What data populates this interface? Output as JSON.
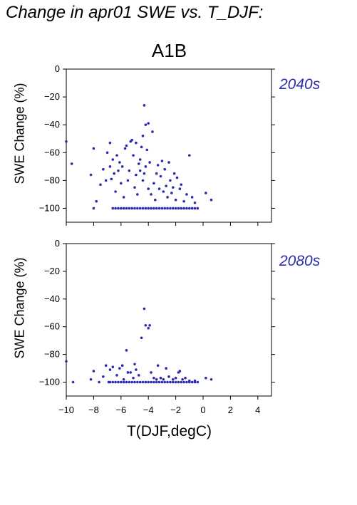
{
  "page_title": "Change in apr01 SWE vs. T_DJF:",
  "scenario": "A1B",
  "colors": {
    "points": "#2b2bb0",
    "axes": "#000000"
  },
  "chart_data": [
    {
      "type": "scatter",
      "period_label": "2040s",
      "ylabel": "SWE Change (%)",
      "xlabel": "",
      "xlim": [
        -10,
        5
      ],
      "ylim": [
        -110,
        0
      ],
      "x_ticks": [
        -10,
        -8,
        -6,
        -4,
        -2,
        0,
        2,
        4
      ],
      "y_ticks": [
        0,
        -20,
        -40,
        -60,
        -80,
        -100
      ],
      "grid": false,
      "legend": "none",
      "points": [
        [
          -10,
          -52
        ],
        [
          -9.6,
          -68
        ],
        [
          -8.2,
          -76
        ],
        [
          -8,
          -57
        ],
        [
          -7.8,
          -95
        ],
        [
          -7.5,
          -83
        ],
        [
          -7.3,
          -72
        ],
        [
          -7.1,
          -80
        ],
        [
          -7,
          -60
        ],
        [
          -6.8,
          -53
        ],
        [
          -6.8,
          -70
        ],
        [
          -6.7,
          -79
        ],
        [
          -6.6,
          -65
        ],
        [
          -6.5,
          -75
        ],
        [
          -6.4,
          -88
        ],
        [
          -6.3,
          -62
        ],
        [
          -6.2,
          -73
        ],
        [
          -6.1,
          -67
        ],
        [
          -6.0,
          -82
        ],
        [
          -5.9,
          -70
        ],
        [
          -5.8,
          -92
        ],
        [
          -5.7,
          -57
        ],
        [
          -5.6,
          -55
        ],
        [
          -5.5,
          -80
        ],
        [
          -5.4,
          -73
        ],
        [
          -5.3,
          -52
        ],
        [
          -5.2,
          -51
        ],
        [
          -5.1,
          -62
        ],
        [
          -5.0,
          -85
        ],
        [
          -4.9,
          -76
        ],
        [
          -4.9,
          -53
        ],
        [
          -4.8,
          -90
        ],
        [
          -4.7,
          -68
        ],
        [
          -4.6,
          -73
        ],
        [
          -4.6,
          -65
        ],
        [
          -4.5,
          -56
        ],
        [
          -4.4,
          -48
        ],
        [
          -4.4,
          -80
        ],
        [
          -4.3,
          -26
        ],
        [
          -4.3,
          -75
        ],
        [
          -4.2,
          -40
        ],
        [
          -4.2,
          -70
        ],
        [
          -4.1,
          -58
        ],
        [
          -4.0,
          -86
        ],
        [
          -4.0,
          -39
        ],
        [
          -3.9,
          -67
        ],
        [
          -3.8,
          -90
        ],
        [
          -3.7,
          -45
        ],
        [
          -3.6,
          -82
        ],
        [
          -3.5,
          -94
        ],
        [
          -3.4,
          -75
        ],
        [
          -3.3,
          -69
        ],
        [
          -3.2,
          -86
        ],
        [
          -3.1,
          -77
        ],
        [
          -3.0,
          -66
        ],
        [
          -2.9,
          -88
        ],
        [
          -2.8,
          -72
        ],
        [
          -2.7,
          -84
        ],
        [
          -2.6,
          -92
        ],
        [
          -2.5,
          -67
        ],
        [
          -2.4,
          -80
        ],
        [
          -2.3,
          -89
        ],
        [
          -2.2,
          -85
        ],
        [
          -2.1,
          -75
        ],
        [
          -2.0,
          -94
        ],
        [
          -1.9,
          -78
        ],
        [
          -1.7,
          -86
        ],
        [
          -1.6,
          -83
        ],
        [
          -1.4,
          -95
        ],
        [
          -1.2,
          -90
        ],
        [
          -1.0,
          -62
        ],
        [
          -0.8,
          -92
        ],
        [
          -0.6,
          -96
        ],
        [
          0.2,
          -89
        ],
        [
          0.6,
          -94
        ],
        [
          -8,
          -100
        ],
        [
          -6.6,
          -100
        ],
        [
          -6.4,
          -100
        ],
        [
          -6.2,
          -100
        ],
        [
          -6.0,
          -100
        ],
        [
          -5.8,
          -100
        ],
        [
          -5.6,
          -100
        ],
        [
          -5.4,
          -100
        ],
        [
          -5.2,
          -100
        ],
        [
          -5.0,
          -100
        ],
        [
          -4.8,
          -100
        ],
        [
          -4.6,
          -100
        ],
        [
          -4.4,
          -100
        ],
        [
          -4.2,
          -100
        ],
        [
          -4.0,
          -100
        ],
        [
          -3.8,
          -100
        ],
        [
          -3.6,
          -100
        ],
        [
          -3.4,
          -100
        ],
        [
          -3.2,
          -100
        ],
        [
          -3.0,
          -100
        ],
        [
          -2.8,
          -100
        ],
        [
          -2.6,
          -100
        ],
        [
          -2.4,
          -100
        ],
        [
          -2.2,
          -100
        ],
        [
          -2.0,
          -100
        ],
        [
          -1.8,
          -100
        ],
        [
          -1.6,
          -100
        ],
        [
          -1.4,
          -100
        ],
        [
          -1.2,
          -100
        ],
        [
          -1.0,
          -100
        ],
        [
          -0.8,
          -100
        ],
        [
          -0.6,
          -100
        ],
        [
          -0.4,
          -100
        ]
      ]
    },
    {
      "type": "scatter",
      "period_label": "2080s",
      "ylabel": "SWE Change (%)",
      "xlabel": "T(DJF,degC)",
      "xlim": [
        -10,
        5
      ],
      "ylim": [
        -110,
        0
      ],
      "x_ticks": [
        -10,
        -8,
        -6,
        -4,
        -2,
        0,
        2,
        4
      ],
      "y_ticks": [
        0,
        -20,
        -40,
        -60,
        -80,
        -100
      ],
      "grid": false,
      "legend": "none",
      "points": [
        [
          -10,
          -85
        ],
        [
          -9.5,
          -100
        ],
        [
          -8.2,
          -98
        ],
        [
          -8.0,
          -92
        ],
        [
          -7.6,
          -100
        ],
        [
          -7.3,
          -96
        ],
        [
          -7.1,
          -88
        ],
        [
          -6.9,
          -100
        ],
        [
          -6.8,
          -91
        ],
        [
          -6.6,
          -89
        ],
        [
          -6.3,
          -95
        ],
        [
          -6.1,
          -90
        ],
        [
          -5.9,
          -88
        ],
        [
          -5.8,
          -98
        ],
        [
          -5.6,
          -77
        ],
        [
          -5.5,
          -93
        ],
        [
          -5.3,
          -93
        ],
        [
          -5.1,
          -97
        ],
        [
          -5.0,
          -87
        ],
        [
          -4.9,
          -91
        ],
        [
          -4.7,
          -95
        ],
        [
          -4.5,
          -68
        ],
        [
          -4.3,
          -47
        ],
        [
          -4.2,
          -59
        ],
        [
          -4.0,
          -61
        ],
        [
          -3.9,
          -59
        ],
        [
          -3.8,
          -93
        ],
        [
          -3.6,
          -97
        ],
        [
          -3.4,
          -98
        ],
        [
          -3.3,
          -88
        ],
        [
          -3.1,
          -97
        ],
        [
          -2.9,
          -98
        ],
        [
          -2.7,
          -90
        ],
        [
          -2.5,
          -96
        ],
        [
          -2.2,
          -98
        ],
        [
          -2.0,
          -97
        ],
        [
          -1.8,
          -93
        ],
        [
          -1.7,
          -92
        ],
        [
          -1.5,
          -98
        ],
        [
          -1.3,
          -97
        ],
        [
          -1.0,
          -99
        ],
        [
          -0.6,
          -99
        ],
        [
          0.2,
          -97
        ],
        [
          0.6,
          -98
        ],
        [
          -6.8,
          -100
        ],
        [
          -6.6,
          -100
        ],
        [
          -6.4,
          -100
        ],
        [
          -6.2,
          -100
        ],
        [
          -6.0,
          -100
        ],
        [
          -5.8,
          -100
        ],
        [
          -5.6,
          -100
        ],
        [
          -5.4,
          -100
        ],
        [
          -5.2,
          -100
        ],
        [
          -5.0,
          -100
        ],
        [
          -4.8,
          -100
        ],
        [
          -4.6,
          -100
        ],
        [
          -4.4,
          -100
        ],
        [
          -4.2,
          -100
        ],
        [
          -4.0,
          -100
        ],
        [
          -3.8,
          -100
        ],
        [
          -3.6,
          -100
        ],
        [
          -3.4,
          -100
        ],
        [
          -3.2,
          -100
        ],
        [
          -3.0,
          -100
        ],
        [
          -2.8,
          -100
        ],
        [
          -2.6,
          -100
        ],
        [
          -2.4,
          -100
        ],
        [
          -2.2,
          -100
        ],
        [
          -2.0,
          -100
        ],
        [
          -1.8,
          -100
        ],
        [
          -1.6,
          -100
        ],
        [
          -1.4,
          -100
        ],
        [
          -1.2,
          -100
        ],
        [
          -1.0,
          -100
        ],
        [
          -0.8,
          -100
        ],
        [
          -0.6,
          -100
        ],
        [
          -0.4,
          -100
        ]
      ]
    }
  ]
}
